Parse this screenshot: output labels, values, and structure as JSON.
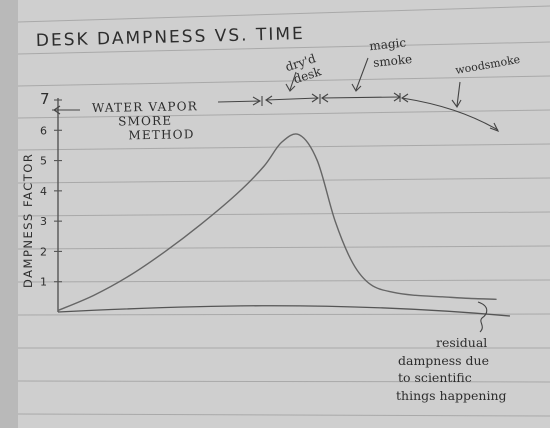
{
  "chart_data": {
    "type": "line",
    "title": "DESK DAMPNESS VS. TIME",
    "ylabel": "DAMPNESS FACTOR",
    "xlabel": "",
    "y_ticks": [
      "1",
      "2",
      "3",
      "4",
      "5",
      "6",
      "7"
    ],
    "ylim": [
      0,
      7
    ],
    "xlim": [
      0,
      10
    ],
    "grid": false,
    "series": [
      {
        "x": [
          0,
          0.8,
          1.6,
          2.4,
          3.2,
          4.0,
          4.6,
          5.0,
          5.4,
          5.8,
          6.2,
          6.6,
          7.0,
          7.5,
          8.0,
          8.6,
          9.2,
          9.8
        ],
        "y": [
          0.05,
          0.55,
          1.2,
          2.0,
          2.9,
          3.9,
          4.8,
          5.6,
          5.85,
          5.0,
          3.0,
          1.6,
          0.9,
          0.65,
          0.55,
          0.5,
          0.45,
          0.42
        ]
      }
    ],
    "annotations": {
      "phase1": "WATER VAPOR SMORE METHOD",
      "phase2": "dry'd desk",
      "phase3": "magic smoke",
      "phase4": "woodsmoke",
      "residual": "residual dampness due to scientific things happening"
    }
  }
}
